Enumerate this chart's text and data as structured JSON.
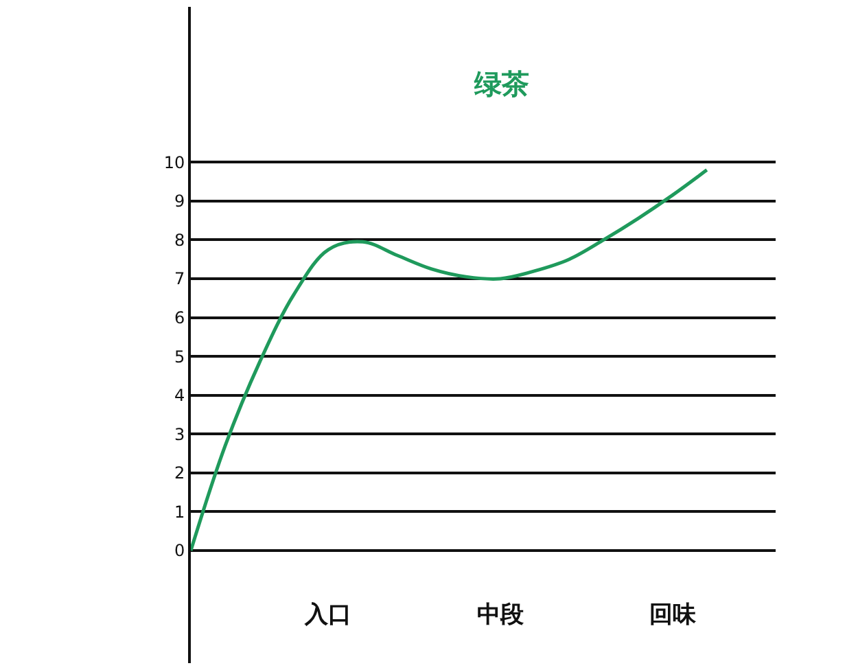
{
  "chart_data": {
    "type": "line",
    "title": "绿茶",
    "categories": [
      null,
      null,
      null,
      null,
      "入口",
      null,
      null,
      null,
      null,
      "中段",
      null,
      null,
      null,
      null,
      "回味",
      null
    ],
    "series": [
      {
        "color": "#1f9a5c",
        "values": [
          0,
          2.7,
          4.85,
          6.6,
          7.75,
          7.95,
          7.6,
          7.25,
          7.05,
          7.0,
          7.2,
          7.5,
          8.0,
          8.55,
          9.15,
          9.8
        ]
      }
    ],
    "ylim": [
      -2.9,
      14
    ],
    "yticks": [
      0,
      1,
      2,
      3,
      4,
      5,
      6,
      7,
      8,
      9,
      10
    ],
    "grid": "y",
    "marker": "none",
    "line_style": "solid"
  }
}
